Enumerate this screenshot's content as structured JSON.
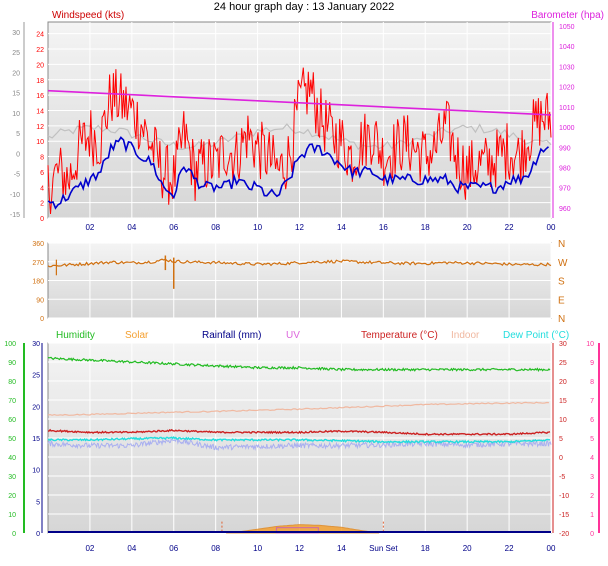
{
  "title": "24 hour graph day : 13 January 2022",
  "colors": {
    "wind_speed": "#ff0000",
    "wind_gust_bg": "#c0c0c0",
    "wind_avg": "#0000cc",
    "barometer": "#dd22dd",
    "wind_dir": "#d07010",
    "humidity": "#22bb22",
    "solar": "#f4a030",
    "rainfall": "#000088",
    "uv": "#dd66dd",
    "temperature": "#cc2222",
    "indoor": "#f0b8a0",
    "dew_point": "#22dddd",
    "temp_left_axis": "#0000aa",
    "temp_right_axis": "#ff3399"
  },
  "time_ticks": [
    "02",
    "04",
    "06",
    "08",
    "10",
    "12",
    "14",
    "16",
    "18",
    "20",
    "22",
    "00"
  ],
  "sun_label": "Sun Set",
  "chart_data": [
    {
      "type": "line",
      "panel": "wind",
      "title": "",
      "left_label": "Windspeed (kts)",
      "right_label": "Barometer (hpa)",
      "y_left_ticks": [
        "0",
        "2",
        "4",
        "6",
        "8",
        "10",
        "12",
        "14",
        "16",
        "18",
        "20",
        "22",
        "24"
      ],
      "y_left_outer_ticks": [
        "-15",
        "-10",
        "-5",
        "0",
        "5",
        "10",
        "15",
        "20",
        "25",
        "30"
      ],
      "y_right_ticks": [
        "960",
        "970",
        "980",
        "990",
        "1000",
        "1010",
        "1020",
        "1030",
        "1040",
        "1050"
      ],
      "ylim_left": [
        0,
        25
      ],
      "ylim_right": [
        955,
        1052
      ],
      "series": [
        {
          "key": "wind_speed",
          "x": [
            0.0,
            0.5,
            1.0,
            1.5,
            2.0,
            2.5,
            3.0,
            3.5,
            4.0,
            4.5,
            5.0,
            5.5,
            6.0,
            6.5,
            7.0,
            7.5,
            8.0,
            8.5,
            9.0,
            9.5,
            10.0,
            10.5,
            11.0,
            11.5,
            12.0,
            12.5,
            13.0,
            13.5,
            14.0,
            14.5,
            15.0,
            15.5,
            16.0,
            16.5,
            17.0,
            17.5,
            18.0,
            18.5,
            19.0,
            19.5,
            20.0,
            20.5,
            21.0,
            21.5,
            22.0,
            22.5,
            23.0,
            23.5
          ],
          "values": [
            4,
            6,
            5,
            9,
            11,
            10,
            16,
            15,
            14,
            12,
            9,
            6,
            5,
            11,
            6,
            7,
            7,
            9,
            8,
            11,
            9,
            8,
            6,
            8,
            15,
            17,
            13,
            11,
            10,
            8,
            10,
            11,
            8,
            9,
            10,
            9,
            8,
            9,
            12,
            8,
            6,
            7,
            7,
            8,
            9,
            8,
            11,
            13
          ]
        },
        {
          "key": "wind_avg",
          "x": [
            0.0,
            0.5,
            1.0,
            1.5,
            2.0,
            2.5,
            3.0,
            3.5,
            4.0,
            4.5,
            5.0,
            5.5,
            6.0,
            6.5,
            7.0,
            7.5,
            8.0,
            8.5,
            9.0,
            9.5,
            10.0,
            10.5,
            11.0,
            11.5,
            12.0,
            12.5,
            13.0,
            13.5,
            14.0,
            14.5,
            15.0,
            15.5,
            16.0,
            16.5,
            17.0,
            17.5,
            18.0,
            18.5,
            19.0,
            19.5,
            20.0,
            20.5,
            21.0,
            21.5,
            22.0,
            22.5,
            23.0,
            23.5
          ],
          "values": [
            2,
            2,
            3,
            4,
            5,
            6,
            9,
            10,
            9,
            8,
            7,
            4,
            3,
            7,
            5,
            4,
            4,
            4,
            5,
            4,
            4,
            3,
            3,
            5,
            8,
            9,
            9,
            8,
            7,
            6,
            6,
            6,
            5,
            5,
            5,
            5,
            5,
            5,
            5,
            4,
            4,
            4,
            4,
            4,
            5,
            5,
            6,
            9
          ]
        },
        {
          "key": "barometer",
          "x": [
            0,
            2,
            4,
            6,
            8,
            10,
            12,
            14,
            16,
            18,
            20,
            22,
            24
          ],
          "values": [
            1018,
            1017,
            1016,
            1015,
            1014,
            1013,
            1012,
            1011,
            1010,
            1009,
            1008,
            1007,
            1006
          ]
        }
      ]
    },
    {
      "type": "scatter",
      "panel": "wind_direction",
      "y_ticks": [
        "0",
        "90",
        "180",
        "270",
        "360"
      ],
      "compass_labels": [
        "N",
        "W",
        "S",
        "E",
        "N"
      ],
      "ylim": [
        0,
        360
      ],
      "series": [
        {
          "key": "wind_dir",
          "x": [
            0,
            1,
            2,
            3,
            4,
            5,
            5.6,
            6,
            7,
            8,
            9,
            10,
            11,
            12,
            13,
            14,
            15,
            16,
            17,
            18,
            19,
            20,
            21,
            22,
            23,
            24
          ],
          "values": [
            250,
            255,
            262,
            268,
            265,
            270,
            280,
            272,
            268,
            266,
            262,
            258,
            260,
            266,
            270,
            272,
            268,
            265,
            262,
            262,
            266,
            264,
            262,
            258,
            256,
            258
          ]
        }
      ]
    },
    {
      "type": "line",
      "panel": "temperature",
      "legend": [
        "Humidity",
        "Solar",
        "Rainfall (mm)",
        "UV",
        "Temperature (°C)",
        "Indoor",
        "Dew Point (°C)"
      ],
      "humidity_ticks": [
        "0",
        "10",
        "20",
        "30",
        "40",
        "50",
        "60",
        "70",
        "80",
        "90",
        "100"
      ],
      "rain_ticks": [
        "0",
        "5",
        "10",
        "15",
        "20",
        "25",
        "30"
      ],
      "temp_ticks": [
        "-20",
        "-15",
        "-10",
        "-5",
        "0",
        "5",
        "10",
        "15",
        "20",
        "25",
        "30"
      ],
      "uv_ticks": [
        "0",
        "1",
        "2",
        "3",
        "4",
        "5",
        "6",
        "7",
        "8",
        "9",
        "10"
      ],
      "ylim_temp": [
        -20,
        30
      ],
      "series": [
        {
          "key": "humidity",
          "x": [
            0,
            2,
            4,
            6,
            8,
            10,
            12,
            14,
            16,
            18,
            20,
            22,
            24
          ],
          "values": [
            26,
            25.5,
            25,
            24.5,
            24,
            23.5,
            23.5,
            23,
            23,
            23,
            23,
            23,
            23
          ]
        },
        {
          "key": "indoor",
          "x": [
            0,
            2,
            4,
            6,
            8,
            10,
            12,
            14,
            16,
            18,
            20,
            22,
            24
          ],
          "values": [
            11,
            11.2,
            11.5,
            11.8,
            12,
            12.3,
            12.6,
            13,
            13.4,
            13.8,
            14,
            14.2,
            14.3
          ]
        },
        {
          "key": "temperature",
          "x": [
            0,
            2,
            4,
            6,
            8,
            10,
            12,
            14,
            16,
            18,
            20,
            22,
            24
          ],
          "values": [
            7,
            6.5,
            6.5,
            7,
            6.5,
            6.5,
            6.5,
            6.8,
            6.5,
            6,
            6,
            6,
            6.5
          ]
        },
        {
          "key": "dew_point",
          "x": [
            0,
            2,
            4,
            6,
            8,
            10,
            12,
            14,
            16,
            18,
            20,
            22,
            24
          ],
          "values": [
            4.5,
            4.5,
            4.8,
            5,
            4.5,
            4.5,
            4.5,
            4.3,
            4,
            4,
            4,
            4,
            4.5
          ]
        },
        {
          "key": "uv",
          "x": [
            0,
            2,
            4,
            6,
            8,
            10,
            12,
            14,
            16,
            18,
            20,
            22,
            24
          ],
          "values": [
            3.5,
            3,
            3,
            4.5,
            2.5,
            2.8,
            3,
            3,
            3.2,
            3.5,
            3.2,
            3.5,
            3.5
          ]
        },
        {
          "key": "solar",
          "x": [
            8.5,
            9,
            10,
            11,
            12,
            13,
            14,
            15,
            15.8
          ],
          "values": [
            0,
            0.2,
            1,
            1.8,
            2.2,
            2,
            1.5,
            0.6,
            0
          ]
        }
      ]
    }
  ]
}
